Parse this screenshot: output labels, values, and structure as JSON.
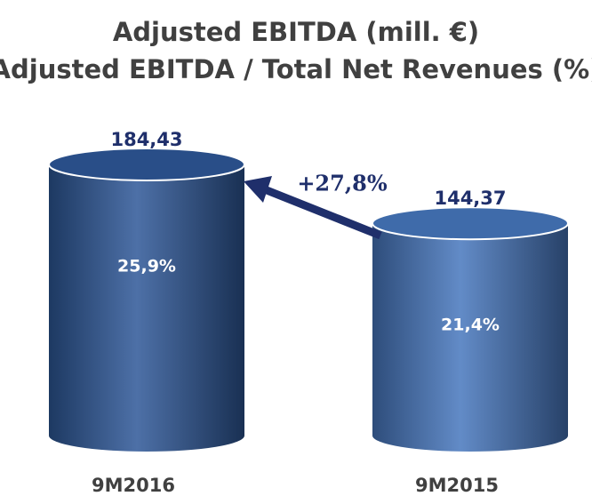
{
  "chart_data": {
    "type": "cylinder",
    "title": "Adjusted EBITDA (mill. €)",
    "subtitle": "Adjusted EBITDA / Total Net Revenues (%)",
    "categories": [
      "9M2016",
      "9M2015"
    ],
    "values": [
      184.43,
      144.37
    ],
    "value_labels": [
      "184,43",
      "144,37"
    ],
    "ratios": [
      25.9,
      21.4
    ],
    "ratio_labels": [
      "25,9%",
      "21,4%"
    ],
    "annotation": "+27,8%",
    "colors": [
      "#2d5797",
      "#4677bd"
    ]
  }
}
